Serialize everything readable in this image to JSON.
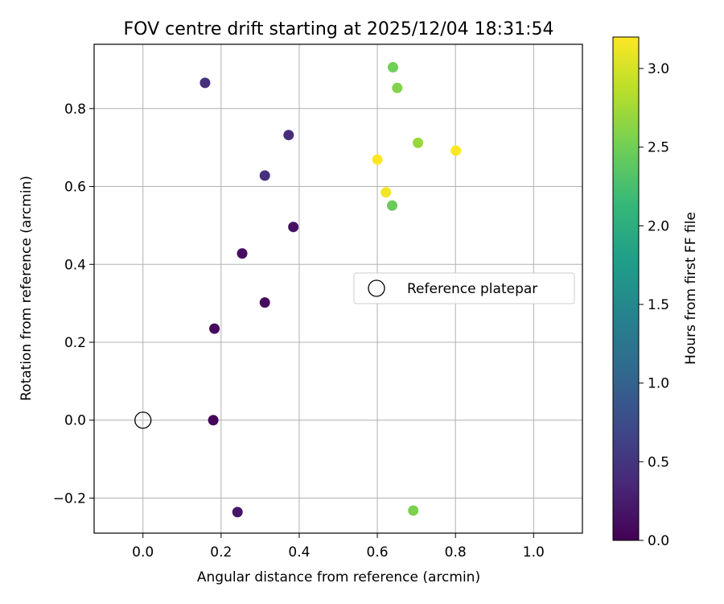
{
  "chart_data": {
    "type": "scatter",
    "title": "FOV centre drift starting at 2025/12/04 18:31:54",
    "xlabel": "Angular distance from reference (arcmin)",
    "ylabel": "Rotation from reference (arcmin)",
    "xlim": [
      -0.125,
      1.125
    ],
    "ylim": [
      -0.29,
      0.965
    ],
    "x_ticks": [
      0.0,
      0.2,
      0.4,
      0.6,
      0.8,
      1.0
    ],
    "x_tick_labels": [
      "0.0",
      "0.2",
      "0.4",
      "0.6",
      "0.8",
      "1.0"
    ],
    "y_ticks": [
      -0.2,
      0.0,
      0.2,
      0.4,
      0.6,
      0.8
    ],
    "y_tick_labels": [
      "−0.2",
      "0.0",
      "0.2",
      "0.4",
      "0.6",
      "0.8"
    ],
    "grid": true,
    "legend": {
      "placement": "center-right",
      "entries": [
        "Reference platepar"
      ]
    },
    "reference_point": {
      "x": 0.0,
      "y": 0.0
    },
    "colorbar": {
      "label": "Hours from first FF file",
      "colormap": "viridis",
      "range": [
        0.0,
        3.2
      ],
      "ticks": [
        0.0,
        0.5,
        1.0,
        1.5,
        2.0,
        2.5,
        3.0
      ],
      "tick_labels": [
        "0.0",
        "0.5",
        "1.0",
        "1.5",
        "2.0",
        "2.5",
        "3.0"
      ]
    },
    "points": [
      {
        "x": 0.18,
        "y": 0.0,
        "c": 0.05
      },
      {
        "x": 0.183,
        "y": 0.235,
        "c": 0.08
      },
      {
        "x": 0.312,
        "y": 0.302,
        "c": 0.1
      },
      {
        "x": 0.254,
        "y": 0.428,
        "c": 0.12
      },
      {
        "x": 0.385,
        "y": 0.496,
        "c": 0.15
      },
      {
        "x": 0.242,
        "y": -0.236,
        "c": 0.2
      },
      {
        "x": 0.312,
        "y": 0.628,
        "c": 0.45
      },
      {
        "x": 0.373,
        "y": 0.732,
        "c": 0.42
      },
      {
        "x": 0.159,
        "y": 0.866,
        "c": 0.45
      },
      {
        "x": 0.638,
        "y": 0.551,
        "c": 2.45
      },
      {
        "x": 0.64,
        "y": 0.906,
        "c": 2.5
      },
      {
        "x": 0.651,
        "y": 0.853,
        "c": 2.6
      },
      {
        "x": 0.704,
        "y": 0.712,
        "c": 2.7
      },
      {
        "x": 0.692,
        "y": -0.232,
        "c": 2.55
      },
      {
        "x": 0.6,
        "y": 0.669,
        "c": 3.2
      },
      {
        "x": 0.622,
        "y": 0.585,
        "c": 3.15
      },
      {
        "x": 0.801,
        "y": 0.692,
        "c": 3.2
      }
    ],
    "colors": {
      "grid": "#b0b0b0",
      "viridis_stops": [
        "#440154",
        "#482878",
        "#3e4989",
        "#31688e",
        "#26828e",
        "#1f9e89",
        "#35b779",
        "#6ece58",
        "#b5de2b",
        "#fde725"
      ]
    }
  }
}
